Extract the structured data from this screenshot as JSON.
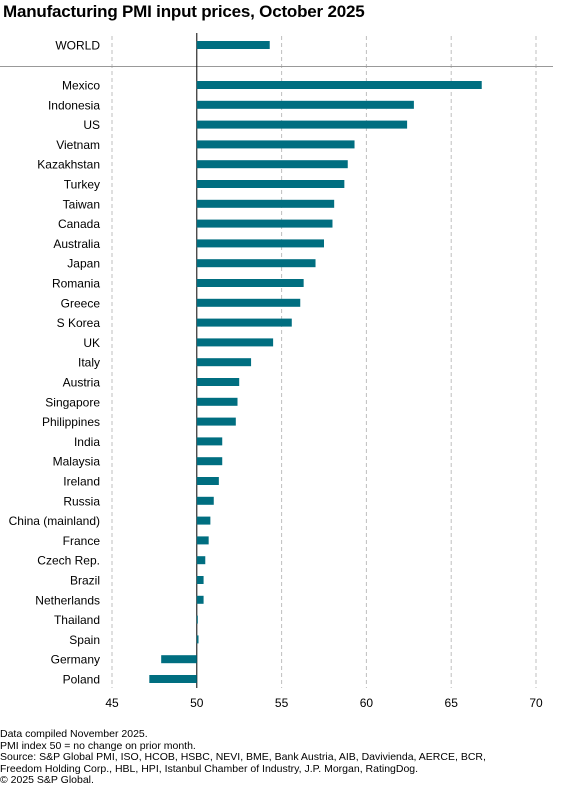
{
  "chart_data": {
    "type": "bar",
    "orientation": "horizontal",
    "title": "Manufacturing PMI input prices, October 2025",
    "baseline": 50,
    "xlim": [
      45,
      70
    ],
    "xticks": [
      45,
      50,
      55,
      60,
      65,
      70
    ],
    "grid": "vertical dashed",
    "color": "#006e80",
    "world": {
      "category": "WORLD",
      "value": 54.3
    },
    "categories": [
      "Mexico",
      "Indonesia",
      "US",
      "Vietnam",
      "Kazakhstan",
      "Turkey",
      "Taiwan",
      "Canada",
      "Australia",
      "Japan",
      "Romania",
      "Greece",
      "S Korea",
      "UK",
      "Italy",
      "Austria",
      "Singapore",
      "Philippines",
      "India",
      "Malaysia",
      "Ireland",
      "Russia",
      "China (mainland)",
      "France",
      "Czech Rep.",
      "Brazil",
      "Netherlands",
      "Thailand",
      "Spain",
      "Germany",
      "Poland"
    ],
    "values": [
      66.8,
      62.8,
      62.4,
      59.3,
      58.9,
      58.7,
      58.1,
      58.0,
      57.5,
      57.0,
      56.3,
      56.1,
      55.6,
      54.5,
      53.2,
      52.5,
      52.4,
      52.3,
      51.5,
      51.5,
      51.3,
      51.0,
      50.8,
      50.7,
      50.5,
      50.4,
      50.4,
      50.0,
      50.1,
      47.9,
      47.2
    ]
  },
  "notes": [
    "Data compiled November 2025.",
    "PMI index 50 = no change on prior month.",
    "Source: S&P Global PMI, ISO, HCOB, HSBC, NEVI, BME, Bank Austria, AIB, Davivienda, AERCE, BCR,",
    "Freedom Holding Corp., HBL, HPI, Istanbul Chamber of Industry, J.P. Morgan, RatingDog.",
    "© 2025 S&P Global."
  ]
}
